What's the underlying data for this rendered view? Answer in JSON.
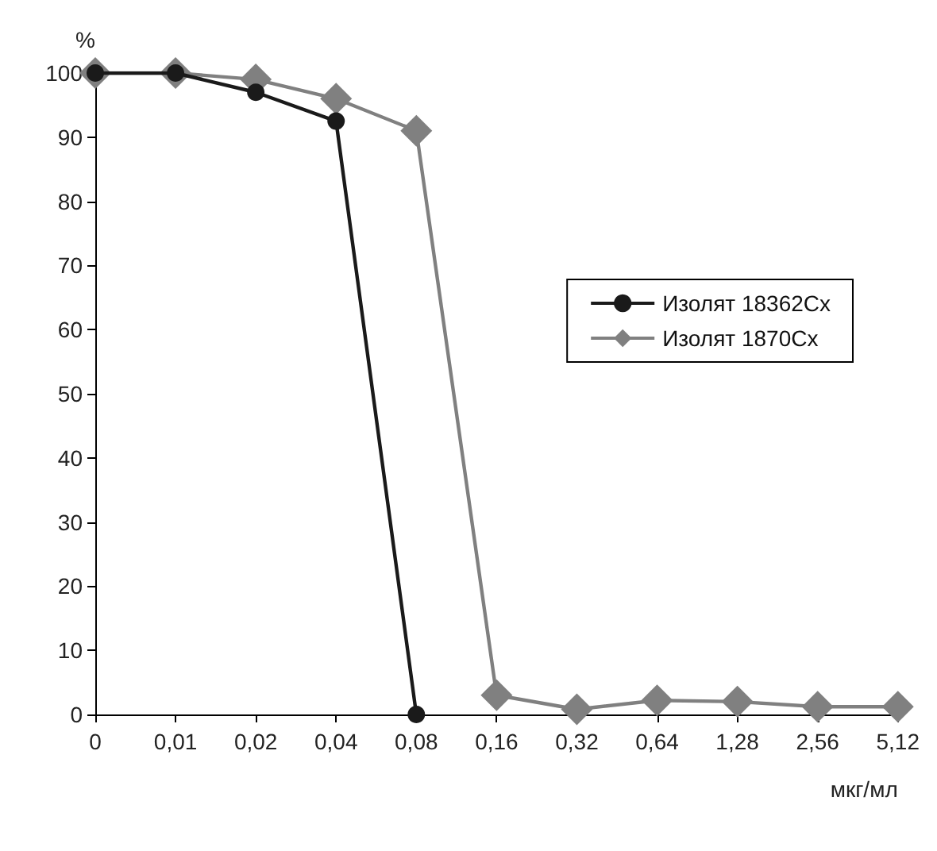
{
  "chart_data": {
    "type": "line",
    "xlabel": "мкг/мл",
    "ylabel": "%",
    "categories": [
      "0",
      "0,01",
      "0,02",
      "0,04",
      "0,08",
      "0,16",
      "0,32",
      "0,64",
      "1,28",
      "2,56",
      "5,12"
    ],
    "series": [
      {
        "name": "Изолят 18362Cx",
        "color": "#1a1a1a",
        "marker": "circle",
        "values": [
          100,
          100,
          97,
          92.5,
          0,
          null,
          null,
          null,
          null,
          null,
          null
        ]
      },
      {
        "name": "Изолят 1870Cx",
        "color": "#808080",
        "marker": "diamond",
        "values": [
          100,
          100,
          99,
          96,
          91,
          3,
          0.8,
          2.2,
          2,
          1.2,
          1.2
        ]
      }
    ],
    "ylim": [
      0,
      100
    ],
    "yticks": [
      0,
      10,
      20,
      30,
      40,
      50,
      60,
      70,
      80,
      90,
      100
    ],
    "grid": false,
    "legend": "right",
    "line_style": "solid"
  }
}
